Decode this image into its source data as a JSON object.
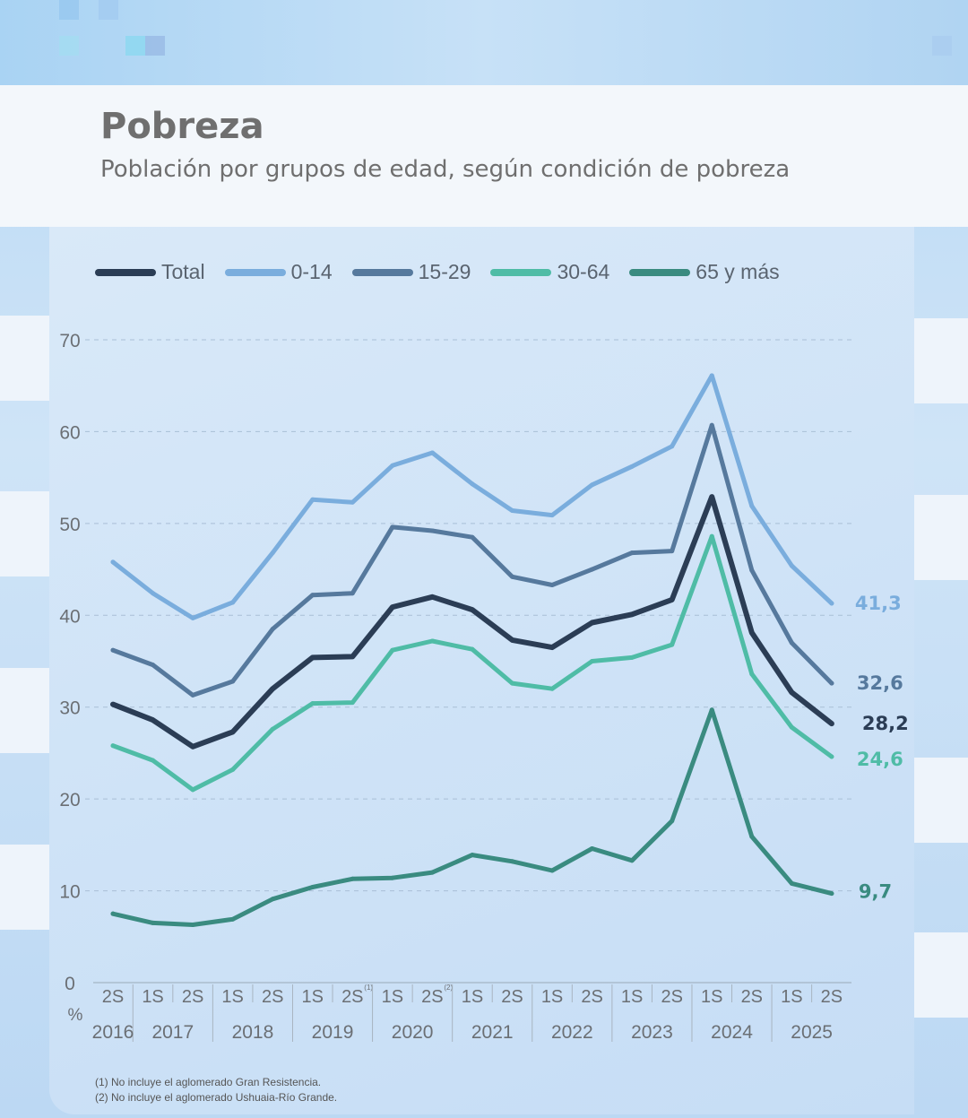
{
  "header": {
    "title": "Pobreza",
    "subtitle": "Población por grupos de edad, según condición de pobreza"
  },
  "footnotes": [
    "(1) No incluye el aglomerado Gran Resistencia.",
    "(2) No incluye el aglomerado Ushuaia-Río Grande."
  ],
  "chart_data": {
    "type": "line",
    "title": "",
    "xlabel": "",
    "ylabel": "%",
    "ylim": [
      0,
      70
    ],
    "yticks": [
      "0",
      "10",
      "20",
      "30",
      "40",
      "50",
      "60",
      "70"
    ],
    "grid": true,
    "legend_position": "top",
    "x_semesters": [
      "2S",
      "1S",
      "2S",
      "1S",
      "2S",
      "1S",
      "2S(1)",
      "1S",
      "2S(2)",
      "1S",
      "2S",
      "1S",
      "2S",
      "1S",
      "2S",
      "1S",
      "2S",
      "1S",
      "2S"
    ],
    "semester_labels": [
      "2S",
      "1S",
      "2S",
      "1S",
      "2S",
      "1S",
      "2S",
      "1S",
      "2S",
      "1S",
      "2S",
      "1S",
      "2S",
      "1S",
      "2S",
      "1S",
      "2S",
      "1S",
      "2S"
    ],
    "semester_notes": [
      "",
      "",
      "",
      "",
      "",
      "",
      "(1)",
      "",
      "(2)",
      "",
      "",
      "",
      "",
      "",
      "",
      "",
      "",
      "",
      ""
    ],
    "years": [
      "2016",
      "2017",
      "2018",
      "2019",
      "2020",
      "2021",
      "2022",
      "2023",
      "2024",
      "2025"
    ],
    "series": [
      {
        "name": "Total",
        "color": "#2b3d55",
        "values": [
          30.3,
          28.6,
          25.7,
          27.3,
          32.0,
          35.4,
          35.5,
          40.9,
          42.0,
          40.6,
          37.3,
          36.5,
          39.2,
          40.1,
          41.7,
          52.9,
          38.1,
          31.6,
          28.2
        ],
        "end_label": "28,2"
      },
      {
        "name": "0-14",
        "color": "#7aaddd",
        "values": [
          45.8,
          42.4,
          39.7,
          41.4,
          46.8,
          52.6,
          52.3,
          56.3,
          57.7,
          54.3,
          51.4,
          50.9,
          54.2,
          56.2,
          58.4,
          66.1,
          51.9,
          45.4,
          41.3
        ],
        "end_label": "41,3"
      },
      {
        "name": "15-29",
        "color": "#56799d",
        "values": [
          36.2,
          34.6,
          31.3,
          32.8,
          38.5,
          42.2,
          42.4,
          49.6,
          49.2,
          48.5,
          44.2,
          43.3,
          45.0,
          46.8,
          47.0,
          60.7,
          44.9,
          37.0,
          32.6
        ],
        "end_label": "32,6"
      },
      {
        "name": "30-64",
        "color": "#4fbca6",
        "values": [
          25.8,
          24.2,
          21.0,
          23.2,
          27.6,
          30.4,
          30.5,
          36.2,
          37.2,
          36.3,
          32.6,
          32.0,
          35.0,
          35.4,
          36.8,
          48.6,
          33.6,
          27.8,
          24.6
        ],
        "end_label": "24,6"
      },
      {
        "name": "65 y más",
        "color": "#3a8b80",
        "values": [
          7.5,
          6.5,
          6.3,
          6.9,
          9.1,
          10.4,
          11.3,
          11.4,
          12.0,
          13.9,
          13.2,
          12.2,
          14.6,
          13.3,
          17.6,
          29.7,
          15.9,
          10.8,
          9.7
        ],
        "end_label": "9,7"
      }
    ]
  }
}
